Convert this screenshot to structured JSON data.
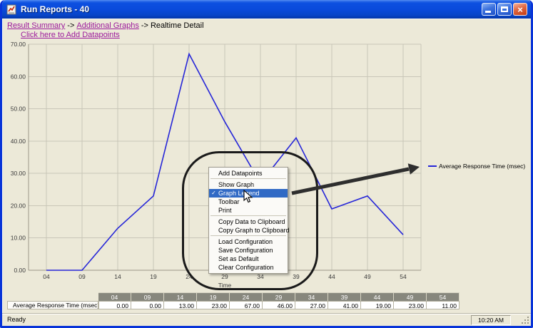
{
  "window": {
    "title": "Run Reports - 40",
    "status_left": "Ready",
    "status_time": "10:20 AM"
  },
  "icons": {
    "close": "×",
    "checkmark": "✓",
    "legend_dash": "—"
  },
  "breadcrumb": {
    "separator": "->",
    "items": [
      {
        "label": "Result Summary",
        "link": true
      },
      {
        "label": "Additional Graphs",
        "link": true
      },
      {
        "label": "Realtime Detail",
        "link": false
      }
    ],
    "add_datapoints": "Click here to Add Datapoints"
  },
  "context_menu": {
    "items": [
      {
        "label": "Add Datapoints"
      },
      {
        "separator": true
      },
      {
        "label": "Show Graph"
      },
      {
        "label": "Graph Legend",
        "checked": true,
        "highlighted": true
      },
      {
        "label": "Toolbar"
      },
      {
        "label": "Print"
      },
      {
        "separator": true
      },
      {
        "label": "Copy Data to Clipboard"
      },
      {
        "label": "Copy Graph to Clipboard"
      },
      {
        "separator": true
      },
      {
        "label": "Load Configuration"
      },
      {
        "label": "Save Configuration"
      },
      {
        "label": "Set as Default"
      },
      {
        "label": "Clear Configuration"
      }
    ]
  },
  "chart_data": {
    "type": "line",
    "x": [
      "04",
      "09",
      "14",
      "19",
      "24",
      "29",
      "34",
      "39",
      "44",
      "49",
      "54"
    ],
    "series": [
      {
        "name": "Average Response Time (msec)",
        "values": [
          0,
          0,
          13,
          23,
          67,
          46,
          27,
          41,
          19,
          23,
          11
        ],
        "color": "#2626D8"
      }
    ],
    "xlabel": "Time",
    "ylabel": "",
    "ylim": [
      0,
      70
    ],
    "yticks": [
      "70.00",
      "60.00",
      "50.00",
      "40.00",
      "30.00",
      "20.00",
      "10.00",
      "0.00"
    ],
    "grid": true,
    "legend_position": "right"
  },
  "table": {
    "row_label": "Average Response Time (msec)",
    "columns": [
      "04",
      "09",
      "14",
      "19",
      "24",
      "29",
      "34",
      "39",
      "44",
      "49",
      "54"
    ],
    "values": [
      "0.00",
      "0.00",
      "13.00",
      "23.00",
      "67.00",
      "46.00",
      "27.00",
      "41.00",
      "19.00",
      "23.00",
      "11.00"
    ]
  },
  "colors": {
    "line": "#2626D8",
    "menu_highlight": "#316AC5",
    "link": "#9C1A9C",
    "grid": "#C9C6B8",
    "axis": "#9B9889",
    "table_header_bg": "#87877D",
    "window_border": "#0834D8",
    "annotation": "#1A1A1A"
  }
}
